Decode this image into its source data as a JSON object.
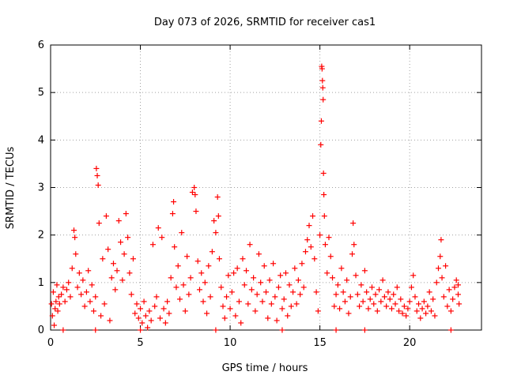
{
  "chart_data": {
    "type": "scatter",
    "title": "Day 073 of 2026, SRMTID for receiver cas1",
    "xlabel": "GPS time / hours",
    "ylabel": "SRMTID / TECUs",
    "xlim": [
      0,
      24
    ],
    "ylim": [
      0,
      6
    ],
    "x_ticks": [
      0,
      5,
      10,
      15,
      20
    ],
    "y_ticks": [
      0,
      1,
      2,
      3,
      4,
      5,
      6
    ],
    "grid": true,
    "marker": "+",
    "color": "#ff0000",
    "series": [
      {
        "name": "SRMTID",
        "points": [
          [
            0.05,
            0.55
          ],
          [
            0.1,
            0.3
          ],
          [
            0.15,
            0.8
          ],
          [
            0.2,
            0.1
          ],
          [
            0.25,
            0.45
          ],
          [
            0.3,
            0.6
          ],
          [
            0.35,
            0.95
          ],
          [
            0.4,
            0.4
          ],
          [
            0.45,
            0.7
          ],
          [
            0.5,
            0.55
          ],
          [
            0.6,
            0.75
          ],
          [
            0.7,
            0.9
          ],
          [
            0.8,
            0.6
          ],
          [
            0.9,
            0.85
          ],
          [
            1.0,
            1.0
          ],
          [
            1.1,
            0.7
          ],
          [
            1.2,
            1.3
          ],
          [
            1.3,
            2.1
          ],
          [
            1.35,
            1.95
          ],
          [
            1.4,
            1.6
          ],
          [
            1.5,
            0.9
          ],
          [
            1.6,
            1.2
          ],
          [
            1.7,
            0.75
          ],
          [
            1.8,
            1.05
          ],
          [
            1.9,
            0.5
          ],
          [
            2.0,
            0.8
          ],
          [
            2.1,
            1.25
          ],
          [
            2.2,
            0.6
          ],
          [
            2.3,
            0.95
          ],
          [
            2.4,
            0.4
          ],
          [
            2.5,
            0.7
          ],
          [
            2.55,
            3.4
          ],
          [
            2.6,
            3.25
          ],
          [
            2.65,
            3.05
          ],
          [
            2.7,
            2.25
          ],
          [
            2.8,
            0.3
          ],
          [
            2.9,
            1.5
          ],
          [
            3.0,
            0.55
          ],
          [
            3.1,
            2.4
          ],
          [
            3.2,
            1.7
          ],
          [
            3.3,
            0.2
          ],
          [
            3.4,
            1.1
          ],
          [
            3.5,
            1.4
          ],
          [
            3.6,
            0.85
          ],
          [
            3.7,
            1.25
          ],
          [
            3.8,
            2.3
          ],
          [
            3.9,
            1.85
          ],
          [
            4.0,
            1.05
          ],
          [
            4.1,
            1.6
          ],
          [
            4.2,
            2.45
          ],
          [
            4.3,
            1.95
          ],
          [
            4.4,
            1.2
          ],
          [
            4.5,
            0.75
          ],
          [
            4.6,
            1.5
          ],
          [
            4.7,
            0.35
          ],
          [
            4.8,
            0.55
          ],
          [
            4.9,
            0.25
          ],
          [
            5.0,
            0.45
          ],
          [
            5.1,
            0.15
          ],
          [
            5.2,
            0.6
          ],
          [
            5.3,
            0.3
          ],
          [
            5.4,
            0.05
          ],
          [
            5.5,
            0.4
          ],
          [
            5.6,
            0.2
          ],
          [
            5.7,
            1.8
          ],
          [
            5.8,
            0.5
          ],
          [
            5.9,
            0.7
          ],
          [
            6.0,
            2.15
          ],
          [
            6.1,
            0.25
          ],
          [
            6.2,
            1.95
          ],
          [
            6.3,
            0.45
          ],
          [
            6.4,
            0.15
          ],
          [
            6.5,
            0.6
          ],
          [
            6.6,
            0.35
          ],
          [
            6.7,
            1.1
          ],
          [
            6.8,
            2.45
          ],
          [
            6.85,
            2.7
          ],
          [
            6.9,
            1.75
          ],
          [
            7.0,
            0.9
          ],
          [
            7.1,
            1.35
          ],
          [
            7.2,
            0.65
          ],
          [
            7.3,
            2.05
          ],
          [
            7.4,
            0.95
          ],
          [
            7.5,
            0.4
          ],
          [
            7.6,
            1.55
          ],
          [
            7.7,
            0.75
          ],
          [
            7.8,
            1.1
          ],
          [
            7.9,
            2.9
          ],
          [
            8.0,
            3.0
          ],
          [
            8.05,
            2.85
          ],
          [
            8.1,
            2.5
          ],
          [
            8.2,
            1.45
          ],
          [
            8.3,
            0.85
          ],
          [
            8.4,
            1.2
          ],
          [
            8.5,
            0.6
          ],
          [
            8.6,
            1.0
          ],
          [
            8.7,
            0.35
          ],
          [
            8.8,
            1.35
          ],
          [
            8.9,
            0.7
          ],
          [
            9.0,
            1.65
          ],
          [
            9.1,
            2.3
          ],
          [
            9.2,
            2.05
          ],
          [
            9.3,
            2.8
          ],
          [
            9.35,
            2.4
          ],
          [
            9.4,
            1.5
          ],
          [
            9.5,
            0.9
          ],
          [
            9.6,
            0.5
          ],
          [
            9.7,
            0.25
          ],
          [
            9.8,
            0.7
          ],
          [
            9.9,
            1.15
          ],
          [
            10.0,
            0.45
          ],
          [
            10.1,
            0.8
          ],
          [
            10.2,
            1.2
          ],
          [
            10.3,
            0.3
          ],
          [
            10.4,
            1.3
          ],
          [
            10.5,
            0.6
          ],
          [
            10.6,
            0.15
          ],
          [
            10.7,
            1.5
          ],
          [
            10.8,
            0.95
          ],
          [
            10.9,
            1.25
          ],
          [
            11.0,
            0.55
          ],
          [
            11.1,
            1.8
          ],
          [
            11.2,
            0.85
          ],
          [
            11.3,
            1.1
          ],
          [
            11.4,
            0.4
          ],
          [
            11.5,
            0.75
          ],
          [
            11.6,
            1.6
          ],
          [
            11.7,
            1.0
          ],
          [
            11.8,
            0.6
          ],
          [
            11.9,
            1.35
          ],
          [
            12.0,
            0.8
          ],
          [
            12.1,
            0.25
          ],
          [
            12.2,
            1.05
          ],
          [
            12.3,
            0.55
          ],
          [
            12.4,
            1.4
          ],
          [
            12.5,
            0.7
          ],
          [
            12.6,
            0.2
          ],
          [
            12.7,
            0.9
          ],
          [
            12.8,
            1.15
          ],
          [
            12.9,
            0.45
          ],
          [
            13.0,
            0.65
          ],
          [
            13.1,
            1.2
          ],
          [
            13.2,
            0.3
          ],
          [
            13.3,
            0.95
          ],
          [
            13.4,
            0.5
          ],
          [
            13.5,
            0.8
          ],
          [
            13.6,
            1.3
          ],
          [
            13.7,
            0.55
          ],
          [
            13.8,
            1.05
          ],
          [
            13.9,
            0.75
          ],
          [
            14.0,
            1.4
          ],
          [
            14.1,
            0.9
          ],
          [
            14.2,
            1.65
          ],
          [
            14.3,
            1.9
          ],
          [
            14.4,
            2.2
          ],
          [
            14.5,
            1.75
          ],
          [
            14.6,
            2.4
          ],
          [
            14.7,
            1.5
          ],
          [
            14.8,
            0.8
          ],
          [
            14.9,
            0.4
          ],
          [
            15.0,
            2.0
          ],
          [
            15.05,
            3.9
          ],
          [
            15.1,
            5.55
          ],
          [
            15.12,
            5.5
          ],
          [
            15.14,
            5.25
          ],
          [
            15.16,
            5.1
          ],
          [
            15.18,
            4.85
          ],
          [
            15.08,
            4.4
          ],
          [
            15.2,
            3.3
          ],
          [
            15.22,
            2.85
          ],
          [
            15.25,
            2.4
          ],
          [
            15.3,
            1.8
          ],
          [
            15.4,
            1.2
          ],
          [
            15.5,
            1.95
          ],
          [
            15.6,
            1.55
          ],
          [
            15.7,
            1.1
          ],
          [
            15.8,
            0.5
          ],
          [
            15.9,
            0.75
          ],
          [
            16.0,
            0.95
          ],
          [
            16.1,
            0.45
          ],
          [
            16.2,
            1.3
          ],
          [
            16.3,
            0.8
          ],
          [
            16.4,
            0.6
          ],
          [
            16.5,
            1.05
          ],
          [
            16.6,
            0.35
          ],
          [
            16.7,
            0.7
          ],
          [
            16.8,
            1.6
          ],
          [
            16.85,
            2.25
          ],
          [
            16.9,
            1.8
          ],
          [
            17.0,
            1.15
          ],
          [
            17.1,
            0.75
          ],
          [
            17.2,
            0.5
          ],
          [
            17.3,
            0.95
          ],
          [
            17.4,
            0.6
          ],
          [
            17.5,
            1.25
          ],
          [
            17.6,
            0.8
          ],
          [
            17.7,
            0.45
          ],
          [
            17.8,
            0.65
          ],
          [
            17.9,
            0.9
          ],
          [
            18.0,
            0.55
          ],
          [
            18.1,
            0.75
          ],
          [
            18.2,
            0.4
          ],
          [
            18.3,
            0.85
          ],
          [
            18.4,
            0.6
          ],
          [
            18.5,
            1.05
          ],
          [
            18.6,
            0.7
          ],
          [
            18.7,
            0.5
          ],
          [
            18.8,
            0.8
          ],
          [
            18.9,
            0.65
          ],
          [
            19.0,
            0.45
          ],
          [
            19.1,
            0.75
          ],
          [
            19.2,
            0.55
          ],
          [
            19.3,
            0.9
          ],
          [
            19.4,
            0.4
          ],
          [
            19.5,
            0.65
          ],
          [
            19.6,
            0.35
          ],
          [
            19.7,
            0.5
          ],
          [
            19.8,
            0.3
          ],
          [
            19.9,
            0.45
          ],
          [
            20.0,
            0.6
          ],
          [
            20.1,
            0.9
          ],
          [
            20.2,
            1.15
          ],
          [
            20.3,
            0.7
          ],
          [
            20.4,
            0.4
          ],
          [
            20.5,
            0.55
          ],
          [
            20.6,
            0.25
          ],
          [
            20.7,
            0.45
          ],
          [
            20.8,
            0.6
          ],
          [
            20.9,
            0.35
          ],
          [
            21.0,
            0.5
          ],
          [
            21.1,
            0.8
          ],
          [
            21.2,
            0.4
          ],
          [
            21.3,
            0.65
          ],
          [
            21.4,
            0.3
          ],
          [
            21.5,
            1.0
          ],
          [
            21.6,
            1.3
          ],
          [
            21.7,
            1.55
          ],
          [
            21.75,
            1.9
          ],
          [
            21.8,
            1.1
          ],
          [
            21.9,
            0.7
          ],
          [
            22.0,
            1.35
          ],
          [
            22.1,
            0.5
          ],
          [
            22.2,
            0.85
          ],
          [
            22.3,
            0.4
          ],
          [
            22.4,
            0.65
          ],
          [
            22.5,
            0.9
          ],
          [
            22.6,
            1.05
          ],
          [
            22.7,
            0.75
          ],
          [
            22.75,
            0.55
          ],
          [
            22.7,
            0.95
          ],
          [
            0.7,
            0.0
          ],
          [
            2.5,
            0.0
          ],
          [
            5.0,
            0.0
          ],
          [
            9.2,
            0.0
          ],
          [
            12.9,
            0.0
          ],
          [
            15.9,
            0.0
          ],
          [
            17.5,
            0.0
          ],
          [
            22.3,
            0.0
          ]
        ]
      }
    ]
  }
}
